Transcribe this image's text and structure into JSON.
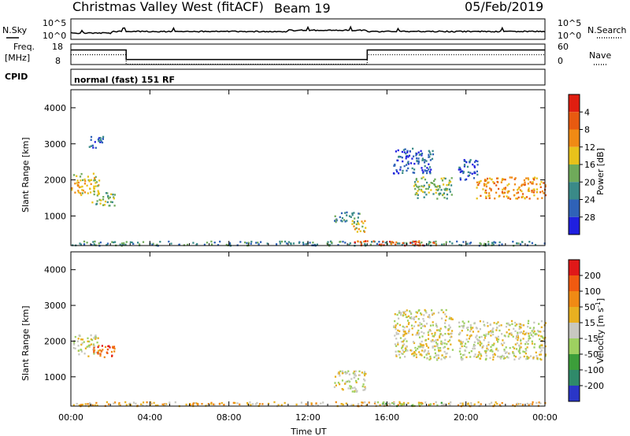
{
  "header": {
    "station": "Christmas Valley West (fitACF)",
    "beam": "Beam 19",
    "date": "05/Feb/2019"
  },
  "status_panel": {
    "nsky_label": "N.Sky",
    "nsearch_label": "N.Search",
    "freq_label_1": "Freq.",
    "freq_label_2": "[MHz]",
    "nave_label": "Nave",
    "cpid_label": "CPID",
    "nsky_ticks": [
      "10^5",
      "10^0"
    ],
    "nsearch_ticks": [
      "10^5",
      "10^0"
    ],
    "freq_ticks": [
      "18",
      "8"
    ],
    "nave_ticks": [
      "60",
      "0"
    ],
    "cpid_text": "normal (fast) 151 RF"
  },
  "chart_data": [
    {
      "type": "heatmap",
      "panel": "power",
      "ylabel": "Slant Range [km]",
      "xlabel": "",
      "ylim": [
        180,
        4500
      ],
      "yticks": [
        1000,
        2000,
        3000,
        4000
      ],
      "xticks_hours": [
        0,
        4,
        8,
        12,
        16,
        20,
        24
      ],
      "colorbar_label": "Power [dB]",
      "colorbar_ticks": [
        "4",
        "8",
        "12",
        "16",
        "20",
        "24",
        "28"
      ],
      "colorbar_colors": [
        "#1f1fe0",
        "#2f62b8",
        "#3a8a88",
        "#6faa5a",
        "#e8c21a",
        "#f08a14",
        "#e85a10",
        "#e01e10"
      ],
      "echo_regions": [
        {
          "t0": 0.0,
          "t1": 1.4,
          "r0": 1600,
          "r1": 2200,
          "level": 4
        },
        {
          "t0": 1.0,
          "t1": 2.2,
          "r0": 1300,
          "r1": 1700,
          "level": 3
        },
        {
          "t0": 0.9,
          "t1": 1.6,
          "r0": 2900,
          "r1": 3300,
          "level": 1
        },
        {
          "t0": 13.3,
          "t1": 14.6,
          "r0": 850,
          "r1": 1150,
          "level": 2
        },
        {
          "t0": 14.2,
          "t1": 14.9,
          "r0": 500,
          "r1": 900,
          "level": 4
        },
        {
          "t0": 16.3,
          "t1": 18.3,
          "r0": 2200,
          "r1": 2900,
          "level": 1
        },
        {
          "t0": 17.3,
          "t1": 19.3,
          "r0": 1500,
          "r1": 2100,
          "level": 3
        },
        {
          "t0": 19.6,
          "t1": 20.6,
          "r0": 2000,
          "r1": 2600,
          "level": 1
        },
        {
          "t0": 20.5,
          "t1": 24.0,
          "r0": 1500,
          "r1": 2100,
          "level": 5
        },
        {
          "t0": 0.0,
          "t1": 24.0,
          "r0": 200,
          "r1": 320,
          "level": 2
        },
        {
          "t0": 14.3,
          "t1": 18.5,
          "r0": 200,
          "r1": 330,
          "level": 6
        }
      ]
    },
    {
      "type": "heatmap",
      "panel": "velocity",
      "ylabel": "Slant Range [km]",
      "xlabel": "Time UT",
      "ylim": [
        180,
        4500
      ],
      "yticks": [
        1000,
        2000,
        3000,
        4000
      ],
      "xticks_hours": [
        0,
        4,
        8,
        12,
        16,
        20,
        24
      ],
      "xtick_labels": [
        "00:00",
        "04:00",
        "08:00",
        "12:00",
        "16:00",
        "20:00",
        "00:00"
      ],
      "colorbar_label": "Velocity [m s",
      "colorbar_label_sup": "-1",
      "colorbar_label_end": "]",
      "colorbar_ticks": [
        "200",
        "100",
        "50",
        "15",
        "-15",
        "-50",
        "-100",
        "-200"
      ],
      "colorbar_colors": [
        "#2a36c8",
        "#2f8a6a",
        "#3c9e3a",
        "#9ed060",
        "#c8c8c0",
        "#e8b020",
        "#f08a14",
        "#f05a10",
        "#e01818"
      ],
      "echo_regions": [
        {
          "t0": 0.0,
          "t1": 1.4,
          "r0": 1600,
          "r1": 2200,
          "level": 4
        },
        {
          "t0": 1.0,
          "t1": 2.2,
          "r0": 1550,
          "r1": 1900,
          "level": 7
        },
        {
          "t0": 13.3,
          "t1": 14.9,
          "r0": 600,
          "r1": 1200,
          "level": 4
        },
        {
          "t0": 16.3,
          "t1": 19.3,
          "r0": 1500,
          "r1": 2900,
          "level": 4
        },
        {
          "t0": 19.6,
          "t1": 24.0,
          "r0": 1500,
          "r1": 2600,
          "level": 4
        },
        {
          "t0": 0.0,
          "t1": 24.0,
          "r0": 200,
          "r1": 320,
          "level": 5
        },
        {
          "t0": 15.5,
          "t1": 19.0,
          "r0": 200,
          "r1": 320,
          "level": 3
        }
      ]
    }
  ],
  "status_series": {
    "freq_steps": [
      {
        "t0": 0.0,
        "t1": 2.8,
        "mhz": 15.5
      },
      {
        "t0": 2.8,
        "t1": 15.0,
        "mhz": 10.0
      },
      {
        "t0": 15.0,
        "t1": 24.0,
        "mhz": 15.5
      }
    ]
  },
  "colors": {
    "line": "#000000",
    "background": "#ffffff"
  }
}
